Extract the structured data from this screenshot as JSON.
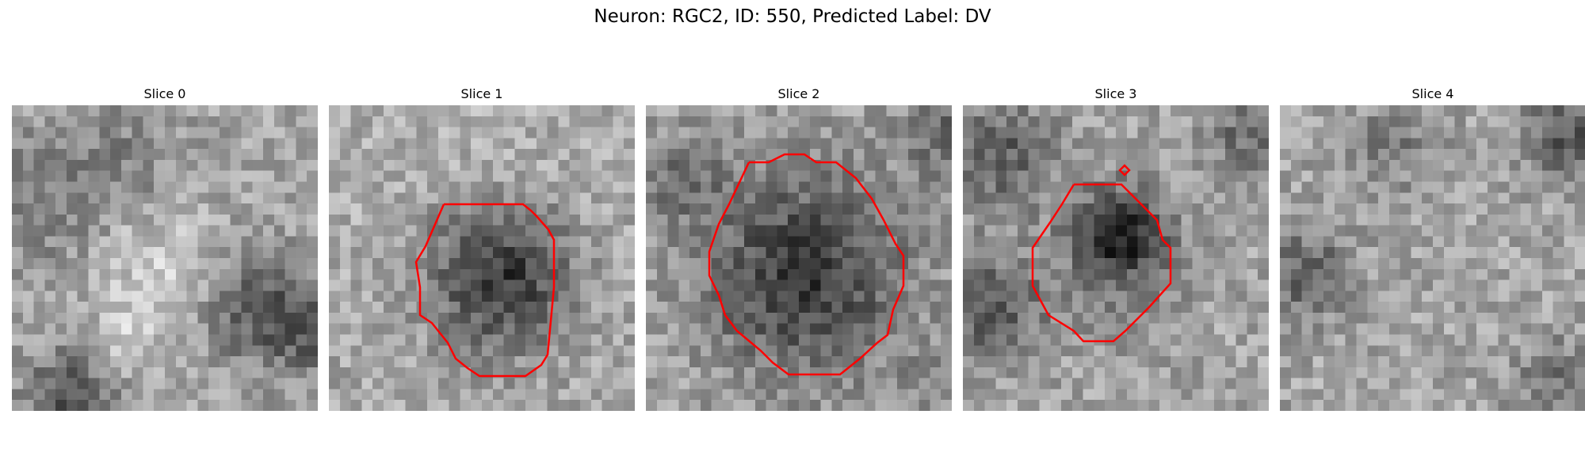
{
  "figure": {
    "title": "Neuron: RGC2, ID: 550, Predicted Label: DV",
    "contour_color": "#ff0000",
    "colormap": "grayscale",
    "panels": [
      {
        "title": "Slice 0",
        "has_contour": false
      },
      {
        "title": "Slice 1",
        "has_contour": true
      },
      {
        "title": "Slice 2",
        "has_contour": true
      },
      {
        "title": "Slice 3",
        "has_contour": true
      },
      {
        "title": "Slice 4",
        "has_contour": false
      }
    ]
  }
}
